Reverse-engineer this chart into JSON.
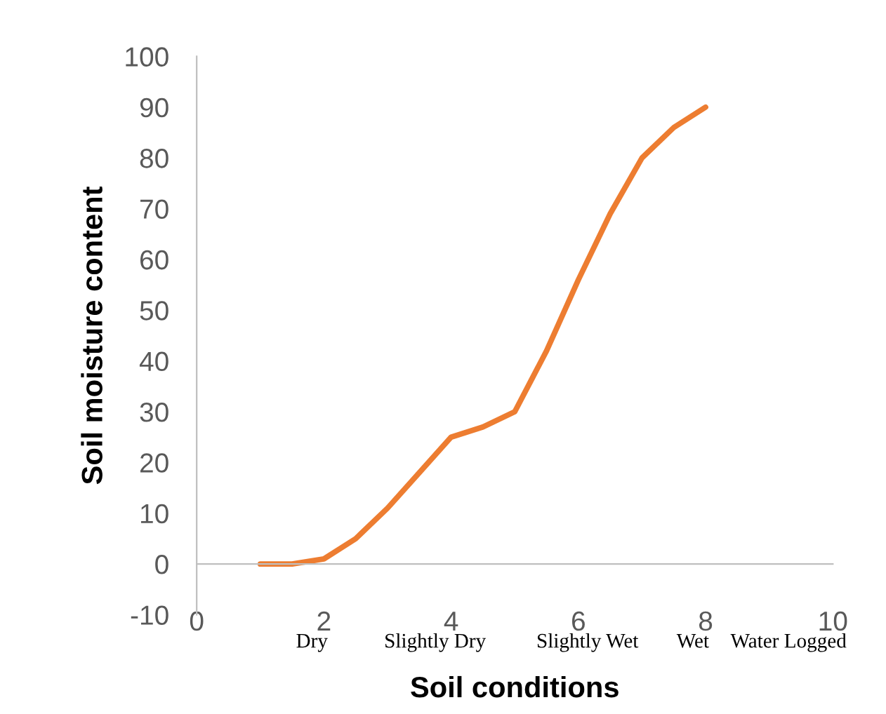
{
  "chart_data": {
    "type": "line",
    "xlabel": "Soil conditions",
    "ylabel": "Soil moisture content",
    "x": [
      1,
      1.5,
      2,
      2.5,
      3,
      3.5,
      4,
      4.5,
      5,
      5.5,
      6,
      6.5,
      7,
      7.5,
      8
    ],
    "series": [
      {
        "color": "#ed7d31",
        "values": [
          0,
          0,
          1,
          5,
          11,
          18,
          25,
          27,
          30,
          42,
          56,
          69,
          80,
          86,
          90
        ]
      }
    ],
    "xlim": [
      0,
      10
    ],
    "xticks": [
      0,
      2,
      4,
      6,
      8,
      10
    ],
    "ylim": [
      -10,
      100
    ],
    "yticks": [
      -10,
      0,
      10,
      20,
      30,
      40,
      50,
      60,
      70,
      80,
      90,
      100
    ],
    "grid": false,
    "legend": false,
    "marker": "none",
    "line_style": "solid",
    "annotations": [
      "Dry",
      "Slightly Dry",
      "Slightly Wet",
      "Wet",
      "Water Logged"
    ]
  }
}
